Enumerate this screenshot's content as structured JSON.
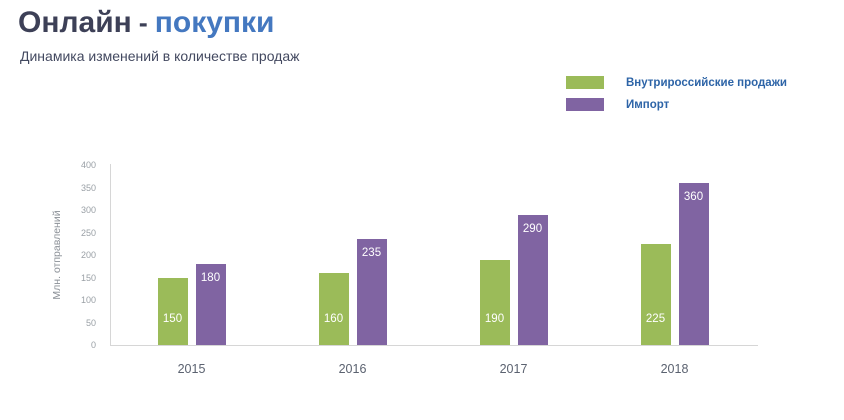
{
  "header": {
    "title_part1": "Онлайн",
    "title_separator": "-",
    "title_part2": "покупки",
    "subtitle": "Динамика изменений в количестве продаж"
  },
  "legend": [
    {
      "label": "Внутрироссийские продажи",
      "color": "#9BBB59"
    },
    {
      "label": "Импорт",
      "color": "#8064A2"
    }
  ],
  "chart_data": {
    "type": "bar",
    "title": "Онлайн - покупки",
    "subtitle": "Динамика изменений в количестве продаж",
    "categories": [
      "2015",
      "2016",
      "2017",
      "2018"
    ],
    "series": [
      {
        "name": "Внутрироссийские продажи",
        "color": "#9BBB59",
        "values": [
          150,
          160,
          190,
          225
        ]
      },
      {
        "name": "Импорт",
        "color": "#8064A2",
        "values": [
          180,
          235,
          290,
          360
        ]
      }
    ],
    "xlabel": "",
    "ylabel": "Млн. отправлений",
    "ylim": [
      0,
      400
    ],
    "ytick_step": 50,
    "grid": false,
    "legend_position": "top-right",
    "data_labels": true
  }
}
